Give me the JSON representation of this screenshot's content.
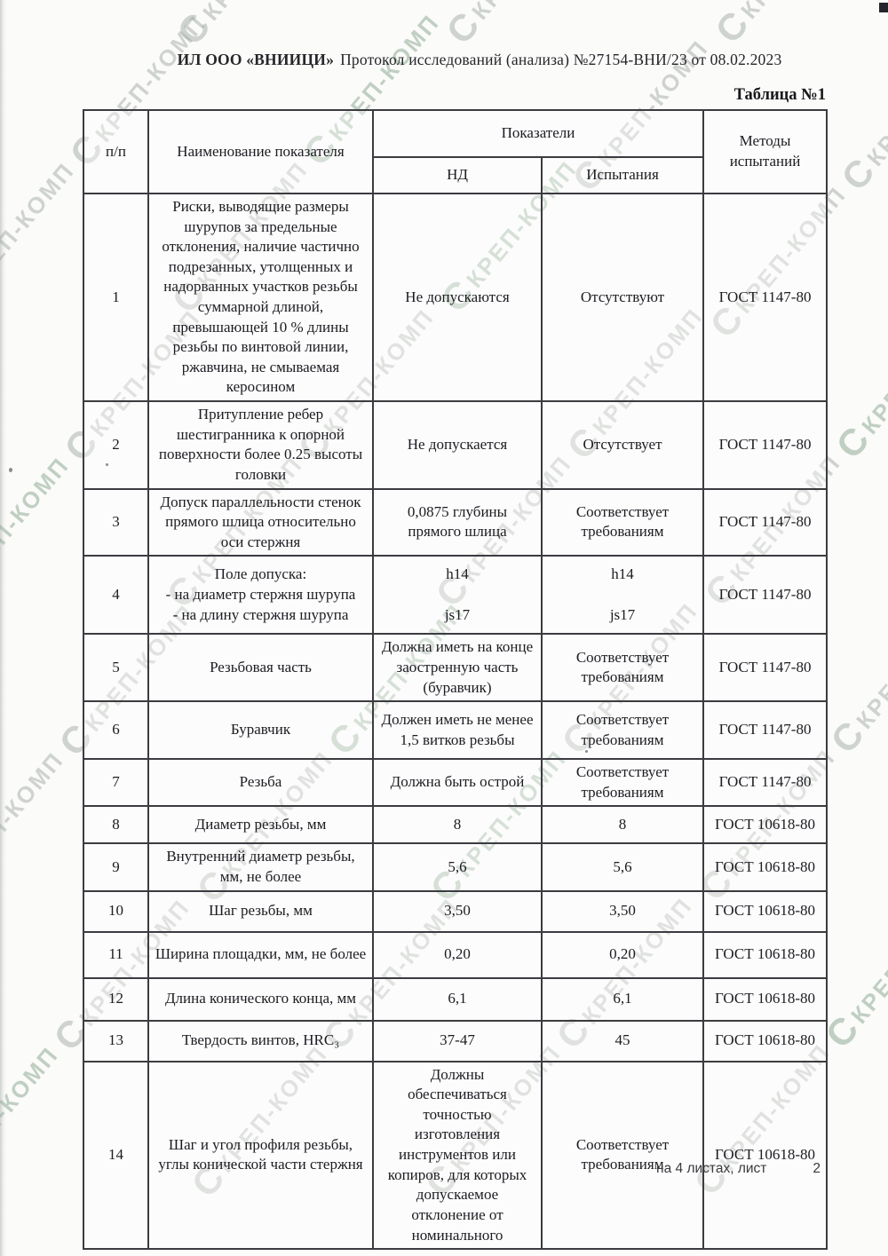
{
  "header": {
    "org": "ИЛ ООО «ВНИИЦИ»",
    "protocol": "Протокол исследований (анализа) №27154-ВНИ/23 от 08.02.2023"
  },
  "table": {
    "title": "Таблица №1",
    "columns": {
      "num": "п/п",
      "name": "Наименование показателя",
      "indicators": "Показатели",
      "nd": "НД",
      "test": "Испытания",
      "methods": "Методы испытаний"
    },
    "rows": [
      {
        "num": "1",
        "name": "Риски, выводящие размеры шурупов за предельные отклонения, наличие частично подрезанных, утолщенных и надорванных участков резьбы суммарной длиной, превышающей 10 % длины резьбы по винтовой линии, ржавчина, не смываемая керосином",
        "nd": "Не допускаются",
        "test": "Отсутствуют",
        "method": "ГОСТ 1147-80"
      },
      {
        "num": "2",
        "name": "Притупление ребер шестигранника к опорной поверхности более 0.25 высоты головки",
        "nd": "Не допускается",
        "test": "Отсутствует",
        "method": "ГОСТ 1147-80"
      },
      {
        "num": "3",
        "name": "Допуск параллельности стенок прямого шлица относительно оси стержня",
        "nd": "0,0875 глубины прямого шлица",
        "test": "Соответствует требованиям",
        "method": "ГОСТ 1147-80"
      },
      {
        "num": "4",
        "name": "Поле допуска:\n- на диаметр стержня шурупа\n- на длину стержня шурупа",
        "nd": "h14\n\njs17",
        "test": "h14\n\njs17",
        "method": "ГОСТ 1147-80"
      },
      {
        "num": "5",
        "name": "Резьбовая часть",
        "nd": "Должна иметь на конце заостренную часть (буравчик)",
        "test": "Соответствует требованиям",
        "method": "ГОСТ 1147-80"
      },
      {
        "num": "6",
        "name": "Буравчик",
        "nd": "Должен иметь не менее 1,5 витков резьбы",
        "test": "Соответствует требованиям",
        "method": "ГОСТ 1147-80"
      },
      {
        "num": "7",
        "name": "Резьба",
        "nd": "Должна быть острой",
        "test": "Соответствует требованиям",
        "method": "ГОСТ 1147-80"
      },
      {
        "num": "8",
        "name": "Диаметр резьбы, мм",
        "nd": "8",
        "test": "8",
        "method": "ГОСТ 10618-80"
      },
      {
        "num": "9",
        "name": "Внутренний диаметр резьбы, мм, не более",
        "nd": "5,6",
        "test": "5,6",
        "method": "ГОСТ 10618-80"
      },
      {
        "num": "10",
        "name": "Шаг резьбы, мм",
        "nd": "3,50",
        "test": "3,50",
        "method": "ГОСТ 10618-80"
      },
      {
        "num": "11",
        "name": "Ширина площадки, мм, не более",
        "nd": "0,20",
        "test": "0,20",
        "method": "ГОСТ 10618-80"
      },
      {
        "num": "12",
        "name": "Длина конического конца, мм",
        "nd": "6,1",
        "test": "6,1",
        "method": "ГОСТ 10618-80"
      },
      {
        "num": "13",
        "name": "Твердость винтов, HRC₃",
        "nd": "37-47",
        "test": "45",
        "method": "ГОСТ 10618-80"
      },
      {
        "num": "14",
        "name": "Шаг и угол профиля резьбы, углы конической части стержня",
        "nd": "Должны обеспечиваться точностью изготовления инструментов или копиров, для которых допускаемое отклонение от номинального",
        "test": "Соответствует требованиям",
        "method": "ГОСТ 10618-80"
      }
    ]
  },
  "footer": {
    "sheet_info": "на 4 листах, лист",
    "page_number": "2"
  },
  "watermark": {
    "text": "КРЕП-КОМП",
    "logo_glyph": "С",
    "color_gray": "#9aa49d",
    "color_green": "#7a9c80"
  }
}
